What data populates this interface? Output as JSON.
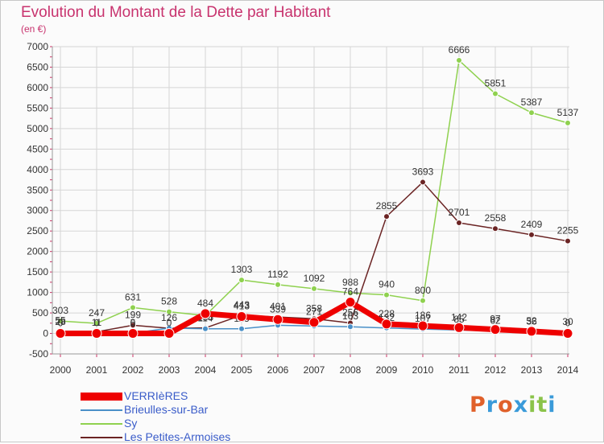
{
  "title": "Evolution du Montant de la Dette par Habitant",
  "subtitle": "(en €)",
  "brand": "Proxiti",
  "brand_colors": [
    "#e0602a",
    "#3a9ad9",
    "#e0602a",
    "#3a9ad9",
    "#8bc34a",
    "#8bc34a",
    "#3a9ad9"
  ],
  "chart_data": {
    "type": "line",
    "title": "Evolution du Montant de la Dette par Habitant",
    "ylabel": "(en €)",
    "xlabel": "",
    "x": [
      "2000",
      "2001",
      "2002",
      "2003",
      "2004",
      "2005",
      "2006",
      "2007",
      "2008",
      "2009",
      "2010",
      "2011",
      "2012",
      "2013",
      "2014"
    ],
    "ylim": [
      -500,
      7000
    ],
    "yticks": [
      "-500",
      "0",
      "500",
      "1000",
      "1500",
      "2000",
      "2500",
      "3000",
      "3500",
      "4000",
      "4500",
      "5000",
      "5500",
      "6000",
      "6500",
      "7000"
    ],
    "grid": true,
    "legend_position": "bottom-left",
    "series": [
      {
        "name": "Sy",
        "color": "#8fd14f",
        "width": 1.5,
        "values": [
          303,
          247,
          631,
          528,
          435,
          1303,
          1192,
          1092,
          988,
          940,
          800,
          6666,
          5851,
          5387,
          5137
        ],
        "labels": [
          "303",
          "247",
          "631",
          "528",
          "",
          "1303",
          "1192",
          "1092",
          "988",
          "940",
          "800",
          "6666",
          "5851",
          "5387",
          "5137"
        ]
      },
      {
        "name": "Les Petites-Armoises",
        "color": "#6b2424",
        "width": 1.5,
        "values": [
          55,
          39,
          199,
          126,
          135,
          443,
          401,
          358,
          256,
          2855,
          3693,
          2701,
          2558,
          2409,
          2255
        ],
        "labels": [
          "55",
          "",
          "199",
          "126",
          "135",
          "443",
          "401",
          "358",
          "256",
          "2855",
          "3693",
          "2701",
          "2558",
          "2409",
          "2255"
        ]
      },
      {
        "name": "Brieulles-sur-Bar",
        "color": "#4a90c8",
        "width": 1.5,
        "values": [
          28,
          11,
          5,
          130,
          114,
          113,
          200,
          180,
          163,
          132,
          107,
          85,
          62,
          36,
          30
        ],
        "labels": [
          "28",
          "11",
          "5",
          "",
          "114",
          "113",
          "",
          "",
          "163",
          "132",
          "107",
          "85",
          "62",
          "36",
          "30"
        ]
      },
      {
        "name": "VERRIèRES",
        "color": "#ee0000",
        "width": 7,
        "values": [
          0,
          0,
          0,
          0,
          484,
          413,
          339,
          271,
          764,
          228,
          186,
          142,
          97,
          52,
          0
        ],
        "labels": [
          "0",
          "0",
          "0",
          "0",
          "484",
          "413",
          "339",
          "271",
          "764",
          "228",
          "186",
          "142",
          "97",
          "52",
          "0"
        ]
      }
    ]
  },
  "legend": [
    {
      "label": "VERRIèRES",
      "color": "#ee0000",
      "thick": true
    },
    {
      "label": "Brieulles-sur-Bar",
      "color": "#4a90c8",
      "thick": false
    },
    {
      "label": "Sy",
      "color": "#8fd14f",
      "thick": false
    },
    {
      "label": "Les Petites-Armoises",
      "color": "#6b2424",
      "thick": false
    }
  ]
}
